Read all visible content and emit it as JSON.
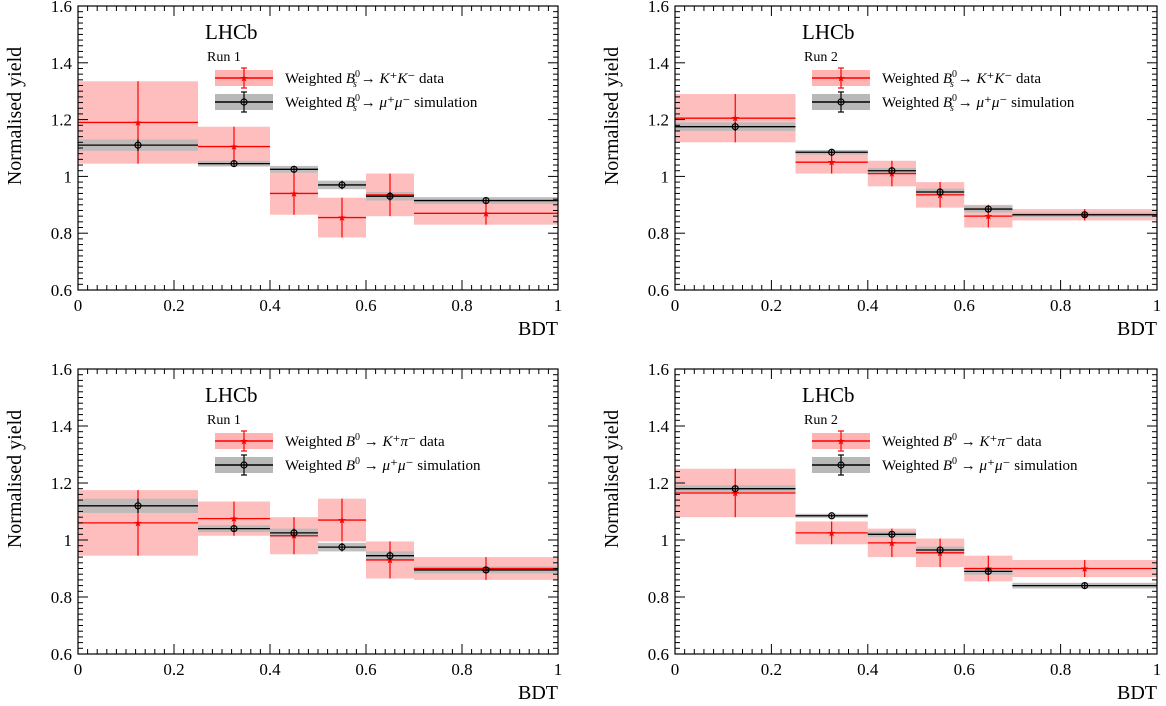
{
  "chart_data": [
    {
      "type": "histogram",
      "experiment": "LHCb",
      "run": "Run 1",
      "xlabel": "BDT",
      "ylabel": "Normalised yield",
      "xlim": [
        0,
        1
      ],
      "ylim": [
        0.6,
        1.6
      ],
      "xticks": [
        "0",
        "0.2",
        "0.4",
        "0.6",
        "0.8",
        "1"
      ],
      "yticks": [
        "0.6",
        "0.8",
        "1",
        "1.2",
        "1.4",
        "1.6"
      ],
      "bin_edges": [
        0,
        0.25,
        0.4,
        0.5,
        0.6,
        0.7,
        1.0
      ],
      "legend": {
        "data": {
          "prefix": "Weighted ",
          "particle": "B",
          "sub": "s",
          "sup": "0",
          "arrow": " → ",
          "final": "K⁺K⁻",
          "suffix": " data"
        },
        "sim": {
          "prefix": "Weighted ",
          "particle": "B",
          "sub": "s",
          "sup": "0",
          "arrow": " → ",
          "final": "μ⁺μ⁻",
          "suffix": " simulation"
        }
      },
      "series": [
        {
          "name": "data",
          "color": "#ff0000",
          "band": "#ffb3b3",
          "marker": "star",
          "values": [
            1.19,
            1.105,
            0.94,
            0.855,
            0.935,
            0.87
          ],
          "errors": [
            0.145,
            0.07,
            0.075,
            0.07,
            0.075,
            0.04
          ]
        },
        {
          "name": "simulation",
          "color": "#000000",
          "band": "#b8b8b8",
          "marker": "circle",
          "values": [
            1.11,
            1.045,
            1.025,
            0.97,
            0.93,
            0.915
          ],
          "errors": [
            0.02,
            0.01,
            0.012,
            0.015,
            0.015,
            0.012
          ]
        }
      ]
    },
    {
      "type": "histogram",
      "experiment": "LHCb",
      "run": "Run 2",
      "xlabel": "BDT",
      "ylabel": "Normalised yield",
      "xlim": [
        0,
        1
      ],
      "ylim": [
        0.6,
        1.6
      ],
      "xticks": [
        "0",
        "0.2",
        "0.4",
        "0.6",
        "0.8",
        "1"
      ],
      "yticks": [
        "0.6",
        "0.8",
        "1",
        "1.2",
        "1.4",
        "1.6"
      ],
      "bin_edges": [
        0,
        0.25,
        0.4,
        0.5,
        0.6,
        0.7,
        1.0
      ],
      "legend": {
        "data": {
          "prefix": "Weighted ",
          "particle": "B",
          "sub": "s",
          "sup": "0",
          "arrow": " → ",
          "final": "K⁺K⁻",
          "suffix": " data"
        },
        "sim": {
          "prefix": "Weighted ",
          "particle": "B",
          "sub": "s",
          "sup": "0",
          "arrow": " → ",
          "final": "μ⁺μ⁻",
          "suffix": " simulation"
        }
      },
      "series": [
        {
          "name": "data",
          "color": "#ff0000",
          "band": "#ffb3b3",
          "marker": "star",
          "values": [
            1.205,
            1.05,
            1.01,
            0.935,
            0.86,
            0.865
          ],
          "errors": [
            0.085,
            0.04,
            0.045,
            0.045,
            0.04,
            0.02
          ]
        },
        {
          "name": "simulation",
          "color": "#000000",
          "band": "#b8b8b8",
          "marker": "circle",
          "values": [
            1.175,
            1.085,
            1.02,
            0.945,
            0.885,
            0.865
          ],
          "errors": [
            0.015,
            0.008,
            0.01,
            0.012,
            0.012,
            0.008
          ]
        }
      ]
    },
    {
      "type": "histogram",
      "experiment": "LHCb",
      "run": "Run 1",
      "xlabel": "BDT",
      "ylabel": "Normalised yield",
      "xlim": [
        0,
        1
      ],
      "ylim": [
        0.6,
        1.6
      ],
      "xticks": [
        "0",
        "0.2",
        "0.4",
        "0.6",
        "0.8",
        "1"
      ],
      "yticks": [
        "0.6",
        "0.8",
        "1",
        "1.2",
        "1.4",
        "1.6"
      ],
      "bin_edges": [
        0,
        0.25,
        0.4,
        0.5,
        0.6,
        0.7,
        1.0
      ],
      "legend": {
        "data": {
          "prefix": "Weighted ",
          "particle": "B",
          "sub": "",
          "sup": "0",
          "arrow": " → ",
          "final": "K⁺π⁻",
          "suffix": " data"
        },
        "sim": {
          "prefix": "Weighted ",
          "particle": "B",
          "sub": "",
          "sup": "0",
          "arrow": " → ",
          "final": "μ⁺μ⁻",
          "suffix": " simulation"
        }
      },
      "series": [
        {
          "name": "data",
          "color": "#ff0000",
          "band": "#ffb3b3",
          "marker": "star",
          "values": [
            1.06,
            1.075,
            1.015,
            1.07,
            0.93,
            0.9
          ],
          "errors": [
            0.115,
            0.06,
            0.065,
            0.075,
            0.065,
            0.04
          ]
        },
        {
          "name": "simulation",
          "color": "#000000",
          "band": "#b8b8b8",
          "marker": "circle",
          "values": [
            1.12,
            1.04,
            1.025,
            0.975,
            0.945,
            0.895
          ],
          "errors": [
            0.025,
            0.012,
            0.015,
            0.015,
            0.015,
            0.012
          ]
        }
      ]
    },
    {
      "type": "histogram",
      "experiment": "LHCb",
      "run": "Run 2",
      "xlabel": "BDT",
      "ylabel": "Normalised yield",
      "xlim": [
        0,
        1
      ],
      "ylim": [
        0.6,
        1.6
      ],
      "xticks": [
        "0",
        "0.2",
        "0.4",
        "0.6",
        "0.8",
        "1"
      ],
      "yticks": [
        "0.6",
        "0.8",
        "1",
        "1.2",
        "1.4",
        "1.6"
      ],
      "bin_edges": [
        0,
        0.25,
        0.4,
        0.5,
        0.6,
        0.7,
        1.0
      ],
      "legend": {
        "data": {
          "prefix": "Weighted ",
          "particle": "B",
          "sub": "",
          "sup": "0",
          "arrow": " → ",
          "final": "K⁺π⁻",
          "suffix": " data"
        },
        "sim": {
          "prefix": "Weighted ",
          "particle": "B",
          "sub": "",
          "sup": "0",
          "arrow": " → ",
          "final": "μ⁺μ⁻",
          "suffix": " simulation"
        }
      },
      "series": [
        {
          "name": "data",
          "color": "#ff0000",
          "band": "#ffb3b3",
          "marker": "star",
          "values": [
            1.165,
            1.025,
            0.99,
            0.955,
            0.9,
            0.9
          ],
          "errors": [
            0.085,
            0.04,
            0.05,
            0.05,
            0.045,
            0.03
          ]
        },
        {
          "name": "simulation",
          "color": "#000000",
          "band": "#b8b8b8",
          "marker": "circle",
          "values": [
            1.18,
            1.085,
            1.02,
            0.965,
            0.89,
            0.84
          ],
          "errors": [
            0.012,
            0.007,
            0.01,
            0.012,
            0.012,
            0.01
          ]
        }
      ]
    }
  ]
}
